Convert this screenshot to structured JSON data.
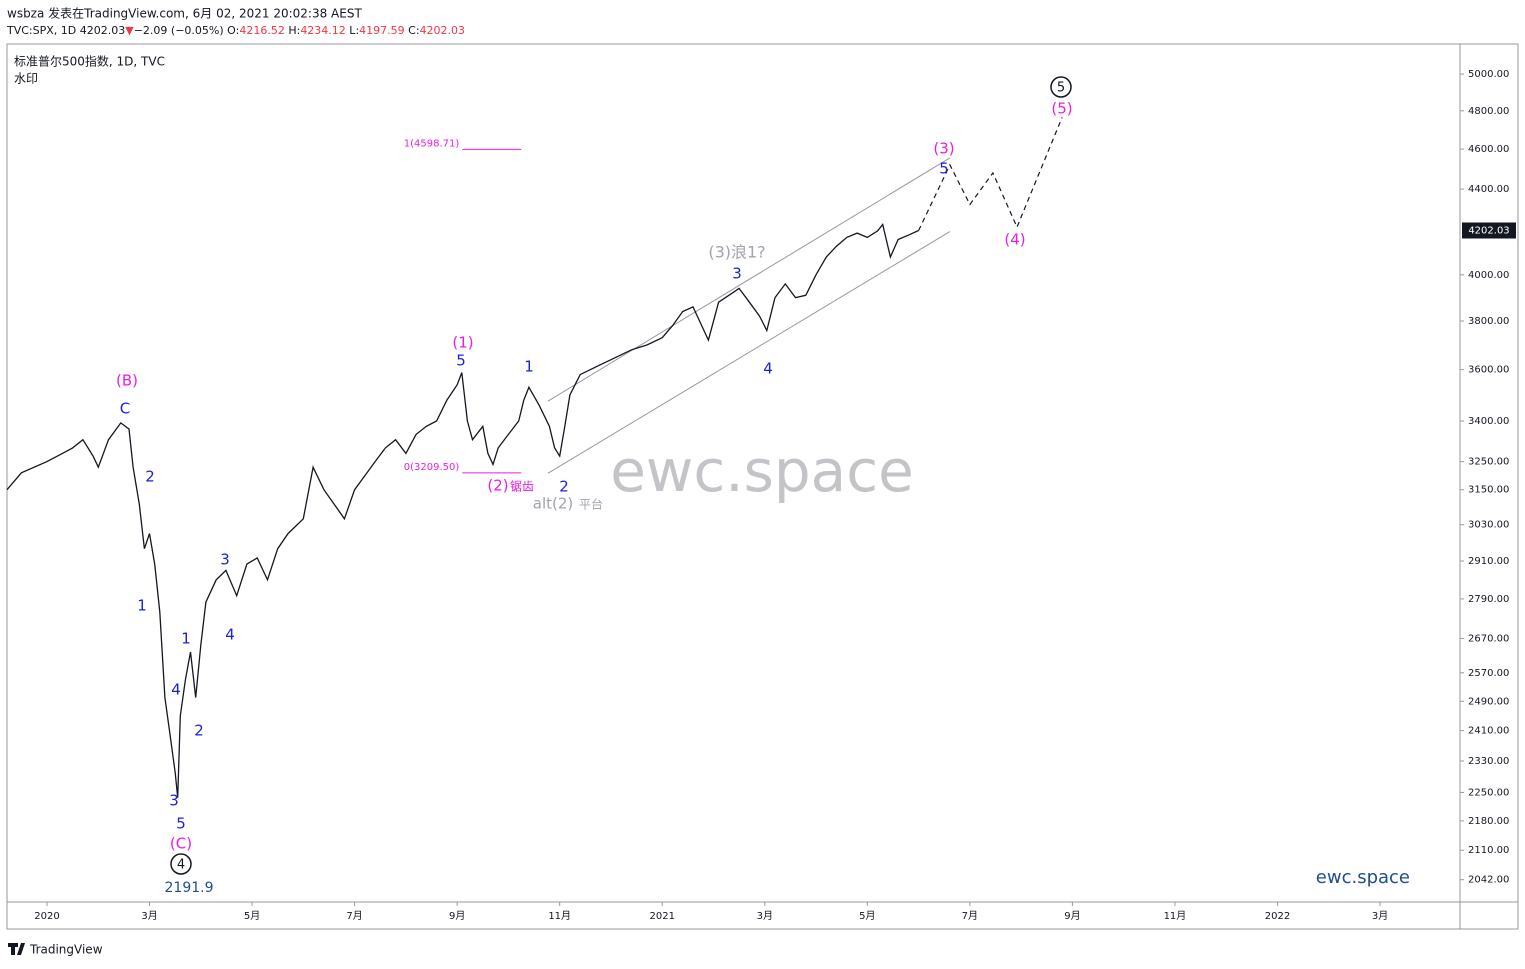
{
  "header": {
    "byline": "wsbza 发表在TradingView.com, 6月 02, 2021 20:02:38 AEST",
    "quote": [
      {
        "text": "TVC:SPX, 1D 4202.03",
        "color": "#131722"
      },
      {
        "text": "▼",
        "color": "#f23645"
      },
      {
        "text": "−2.09 (−0.05%) ",
        "color": "#131722"
      },
      {
        "text": "O:",
        "color": "#131722"
      },
      {
        "text": "4216.52",
        "color": "#f23645"
      },
      {
        "text": " H:",
        "color": "#131722"
      },
      {
        "text": "4234.12",
        "color": "#f23645"
      },
      {
        "text": " L:",
        "color": "#131722"
      },
      {
        "text": "4197.59",
        "color": "#f23645"
      },
      {
        "text": " C:",
        "color": "#131722"
      },
      {
        "text": "4202.03",
        "color": "#f23645"
      }
    ]
  },
  "chart_data": {
    "type": "line",
    "title": "标准普尔500指数, 1D, TVC",
    "subtitle": "水印",
    "watermark": "ewc.space",
    "brand": "ewc.space",
    "footer": "TradingView",
    "log_scale": true,
    "ylim": [
      1992,
      5170
    ],
    "xlim": [
      -0.78,
      27.56
    ],
    "yticks": [
      {
        "value": 5000,
        "label": "5000.00"
      },
      {
        "value": 4800,
        "label": "4800.00"
      },
      {
        "value": 4600,
        "label": "4600.00"
      },
      {
        "value": 4400,
        "label": "4400.00"
      },
      {
        "value": 4000,
        "label": "4000.00"
      },
      {
        "value": 3800,
        "label": "3800.00"
      },
      {
        "value": 3600,
        "label": "3600.00"
      },
      {
        "value": 3400,
        "label": "3400.00"
      },
      {
        "value": 3250,
        "label": "3250.00"
      },
      {
        "value": 3150,
        "label": "3150.00"
      },
      {
        "value": 3030,
        "label": "3030.00"
      },
      {
        "value": 2910,
        "label": "2910.00"
      },
      {
        "value": 2790,
        "label": "2790.00"
      },
      {
        "value": 2670,
        "label": "2670.00"
      },
      {
        "value": 2570,
        "label": "2570.00"
      },
      {
        "value": 2490,
        "label": "2490.00"
      },
      {
        "value": 2410,
        "label": "2410.00"
      },
      {
        "value": 2330,
        "label": "2330.00"
      },
      {
        "value": 2250,
        "label": "2250.00"
      },
      {
        "value": 2180,
        "label": "2180.00"
      },
      {
        "value": 2110,
        "label": "2110.00"
      },
      {
        "value": 2042,
        "label": "2042.00"
      }
    ],
    "xticks": [
      {
        "value": 0,
        "label": "2020"
      },
      {
        "value": 2,
        "label": "3月"
      },
      {
        "value": 4,
        "label": "5月"
      },
      {
        "value": 6,
        "label": "7月"
      },
      {
        "value": 8,
        "label": "9月"
      },
      {
        "value": 10,
        "label": "11月"
      },
      {
        "value": 12,
        "label": "2021"
      },
      {
        "value": 14,
        "label": "3月"
      },
      {
        "value": 16,
        "label": "5月"
      },
      {
        "value": 18,
        "label": "7月"
      },
      {
        "value": 20,
        "label": "9月"
      },
      {
        "value": 22,
        "label": "11月"
      },
      {
        "value": 24,
        "label": "2022"
      },
      {
        "value": 26,
        "label": "3月"
      }
    ],
    "last": {
      "value": 4202.03,
      "label": "4202.03"
    },
    "series": [
      {
        "color": "#131722",
        "x": [
          -0.78,
          -0.5,
          0,
          0.3,
          0.5,
          0.7,
          0.9,
          1.0,
          1.2,
          1.44,
          1.6,
          1.68,
          1.8,
          1.9,
          2.0,
          2.1,
          2.2,
          2.3,
          2.4,
          2.5,
          2.55,
          2.6,
          2.7,
          2.8,
          2.9,
          3.0,
          3.1,
          3.3,
          3.49,
          3.7,
          3.9,
          4.1,
          4.3,
          4.5,
          4.7,
          5.0,
          5.19,
          5.4,
          5.6,
          5.8,
          6.0,
          6.2,
          6.4,
          6.6,
          6.8,
          7.0,
          7.2,
          7.4,
          7.6,
          7.8,
          8.0,
          8.09,
          8.2,
          8.3,
          8.5,
          8.6,
          8.7,
          8.8,
          9.0,
          9.2,
          9.3,
          9.4,
          9.6,
          9.8,
          9.9,
          10.0,
          10.1,
          10.2,
          10.4,
          10.6,
          10.8,
          11.0,
          11.4,
          11.7,
          12.0,
          12.2,
          12.4,
          12.6,
          12.9,
          13.1,
          13.3,
          13.5,
          13.7,
          13.9,
          14.04,
          14.2,
          14.4,
          14.6,
          14.8,
          15.0,
          15.2,
          15.4,
          15.6,
          15.8,
          16.0,
          16.2,
          16.3,
          16.45,
          16.6,
          16.8,
          17.0
        ],
        "values": [
          3150,
          3210,
          3250,
          3280,
          3300,
          3330,
          3270,
          3230,
          3330,
          3393,
          3370,
          3230,
          3100,
          2950,
          3000,
          2900,
          2750,
          2500,
          2400,
          2300,
          2237,
          2450,
          2550,
          2630,
          2500,
          2650,
          2780,
          2850,
          2880,
          2800,
          2900,
          2920,
          2850,
          2950,
          3000,
          3050,
          3230,
          3150,
          3100,
          3050,
          3150,
          3200,
          3250,
          3300,
          3330,
          3280,
          3350,
          3380,
          3400,
          3480,
          3540,
          3588,
          3400,
          3330,
          3380,
          3280,
          3240,
          3300,
          3350,
          3400,
          3480,
          3530,
          3460,
          3380,
          3300,
          3270,
          3380,
          3500,
          3580,
          3600,
          3620,
          3640,
          3680,
          3700,
          3730,
          3780,
          3840,
          3860,
          3720,
          3880,
          3910,
          3940,
          3880,
          3820,
          3760,
          3900,
          3960,
          3900,
          3910,
          4000,
          4080,
          4130,
          4170,
          4190,
          4170,
          4200,
          4230,
          4080,
          4160,
          4180,
          4202.03
        ]
      },
      {
        "color": "#131722",
        "dashed": true,
        "x": [
          17.0,
          17.61,
          18.0,
          18.45,
          18.92,
          19.8
        ],
        "values": [
          4202.03,
          4520,
          4325,
          4480,
          4218,
          4765
        ]
      }
    ],
    "channel": {
      "color": "#9598a1",
      "lines": [
        {
          "x": [
            9.77,
            17.61
          ],
          "values": [
            3476,
            4555
          ]
        },
        {
          "x": [
            9.77,
            17.61
          ],
          "values": [
            3208,
            4197
          ]
        }
      ]
    },
    "levels": {
      "color": "#e91ee0",
      "items": [
        {
          "value": 4598.71,
          "label": "1(4598.71)",
          "x": [
            8.1,
            9.25
          ]
        },
        {
          "value": 3209.5,
          "label": "0(3209.50)",
          "x": [
            8.1,
            9.25
          ]
        }
      ]
    },
    "annotations": [
      {
        "text": "(B)",
        "color": "#e91ee0"
      },
      {
        "text": "C",
        "color": "#1e22d6"
      },
      {
        "text": "2",
        "color": "#1e22d6"
      },
      {
        "text": "1",
        "color": "#1e22d6"
      },
      {
        "text": "3",
        "color": "#1e22d6"
      },
      {
        "text": "4",
        "color": "#1e22d6"
      },
      {
        "text": "1",
        "color": "#1e22d6"
      },
      {
        "text": "4",
        "color": "#1e22d6"
      },
      {
        "text": "2",
        "color": "#1e22d6"
      },
      {
        "text": "3",
        "color": "#1e22d6"
      },
      {
        "text": "5",
        "color": "#1e22d6"
      },
      {
        "text": "(C)",
        "color": "#e91ee0"
      },
      {
        "text": "4",
        "color": "#131722",
        "circled": true
      },
      {
        "text": "2191.9",
        "color": "#1e4e8c"
      },
      {
        "text": "(1)",
        "color": "#e91ee0"
      },
      {
        "text": "5",
        "color": "#1e22d6"
      },
      {
        "text": "1",
        "color": "#1e22d6"
      },
      {
        "text": "(2)",
        "color": "#e91ee0"
      },
      {
        "text": "锯齿",
        "color": "#e91ee0"
      },
      {
        "text": "2",
        "color": "#1e22d6"
      },
      {
        "text": "alt(2)",
        "color": "#a0a3ad"
      },
      {
        "text": "平台",
        "color": "#a0a3ad"
      },
      {
        "text": "(3)浪1?",
        "color": "#a0a3ad"
      },
      {
        "text": "3",
        "color": "#1e22d6"
      },
      {
        "text": "4",
        "color": "#1e22d6"
      },
      {
        "text": "(3)",
        "color": "#e91ee0"
      },
      {
        "text": "5",
        "color": "#1e22d6"
      },
      {
        "text": "(4)",
        "color": "#e91ee0"
      },
      {
        "text": "(5)",
        "color": "#e91ee0"
      },
      {
        "text": "5",
        "color": "#131722",
        "circled": true
      }
    ]
  }
}
